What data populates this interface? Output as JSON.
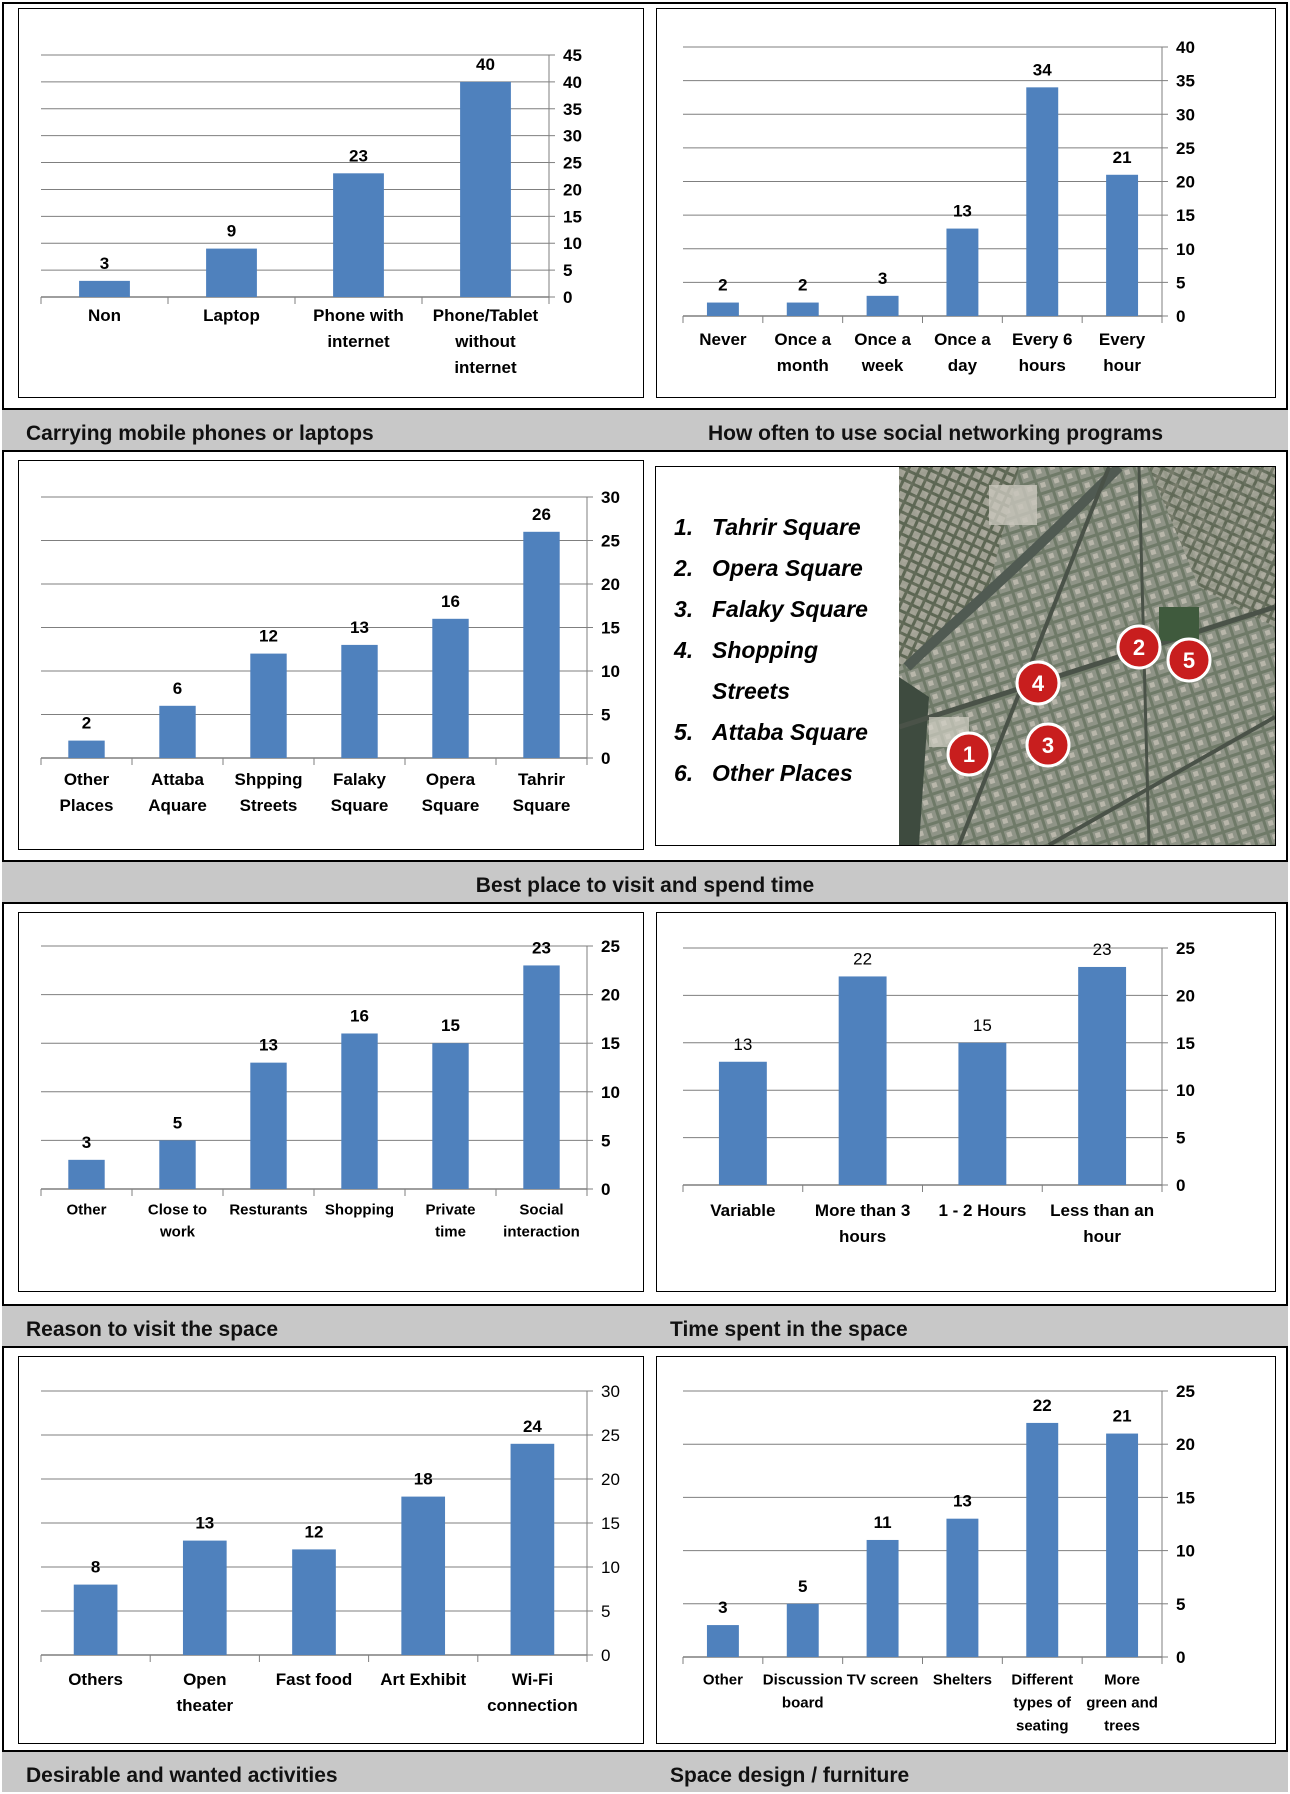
{
  "captions": {
    "c1_left": "Carrying mobile phones or laptops",
    "c1_right": "How often to use social networking programs",
    "c2_center": "Best place to visit and spend time",
    "c3_left": "Reason to visit the space",
    "c3_right": "Time spent in the space",
    "c4_left": "Desirable and wanted activities",
    "c4_right": "Space design / furniture"
  },
  "map_legend": {
    "items": [
      {
        "num": "1.",
        "label": "Tahrir Square"
      },
      {
        "num": "2.",
        "label": "Opera Square"
      },
      {
        "num": "3.",
        "label": "Falaky Square"
      },
      {
        "num": "4.",
        "label": "Shopping Streets"
      },
      {
        "num": "5.",
        "label": "Attaba Square"
      },
      {
        "num": "6.",
        "label": "Other Places"
      }
    ],
    "markers": [
      "1",
      "2",
      "3",
      "4",
      "5"
    ],
    "marker_color": "#c81e1e"
  },
  "colors": {
    "bar": "#4f81bd",
    "grid": "#7f7f7f"
  },
  "chart_data": [
    {
      "id": "carrying",
      "type": "bar",
      "title": "Carrying mobile phones or laptops",
      "categories": [
        [
          "Non"
        ],
        [
          "Laptop"
        ],
        [
          "Phone with",
          "internet"
        ],
        [
          "Phone/Tablet",
          "without",
          "internet"
        ]
      ],
      "values": [
        3,
        9,
        23,
        40
      ],
      "ylim": [
        0,
        45
      ],
      "ystep": 5,
      "ticks_bold": true,
      "labels_bold": true,
      "grid": true,
      "yaxis": "right"
    },
    {
      "id": "social",
      "type": "bar",
      "title": "How often to use social networking programs",
      "categories": [
        [
          "Never"
        ],
        [
          "Once a",
          "month"
        ],
        [
          "Once a",
          "week"
        ],
        [
          "Once a",
          "day"
        ],
        [
          "Every 6",
          "hours"
        ],
        [
          "Every",
          "hour"
        ]
      ],
      "values": [
        2,
        2,
        3,
        13,
        34,
        21
      ],
      "ylim": [
        0,
        40
      ],
      "ystep": 5,
      "ticks_bold": true,
      "labels_bold": true,
      "grid": true,
      "yaxis": "right"
    },
    {
      "id": "best_place",
      "type": "bar",
      "title": "Best place to visit and spend time",
      "categories": [
        [
          "Other",
          "Places"
        ],
        [
          "Attaba",
          "Aquare"
        ],
        [
          "Shpping",
          "Streets"
        ],
        [
          "Falaky",
          "Square"
        ],
        [
          "Opera",
          "Square"
        ],
        [
          "Tahrir",
          "Square"
        ]
      ],
      "values": [
        2,
        6,
        12,
        13,
        16,
        26
      ],
      "ylim": [
        0,
        30
      ],
      "ystep": 5,
      "ticks_bold": true,
      "labels_bold": true,
      "grid": true,
      "yaxis": "right"
    },
    {
      "id": "reason",
      "type": "bar",
      "title": "Reason to visit the space",
      "categories": [
        [
          "Other"
        ],
        [
          "Close to",
          "work"
        ],
        [
          "Resturants"
        ],
        [
          "Shopping"
        ],
        [
          "Private",
          "time"
        ],
        [
          "Social",
          "interaction"
        ]
      ],
      "values": [
        3,
        5,
        13,
        16,
        15,
        23
      ],
      "ylim": [
        0,
        25
      ],
      "ystep": 5,
      "ticks_bold": true,
      "labels_bold": true,
      "grid": true,
      "yaxis": "right"
    },
    {
      "id": "time_spent",
      "type": "bar",
      "title": "Time spent in the space",
      "categories": [
        [
          "Variable"
        ],
        [
          "More than 3",
          "hours"
        ],
        [
          "1 - 2 Hours"
        ],
        [
          "Less than an",
          "hour"
        ]
      ],
      "values": [
        13,
        22,
        15,
        23
      ],
      "ylim": [
        0,
        25
      ],
      "ystep": 5,
      "ticks_bold": true,
      "labels_bold": false,
      "grid": true,
      "yaxis": "right"
    },
    {
      "id": "activities",
      "type": "bar",
      "title": "Desirable and wanted activities",
      "categories": [
        [
          "Others"
        ],
        [
          "Open",
          "theater"
        ],
        [
          "Fast food"
        ],
        [
          "Art Exhibit"
        ],
        [
          "Wi-Fi",
          "connection"
        ]
      ],
      "values": [
        8,
        13,
        12,
        18,
        24
      ],
      "ylim": [
        0,
        30
      ],
      "ystep": 5,
      "ticks_bold": false,
      "labels_bold": true,
      "grid": true,
      "yaxis": "right"
    },
    {
      "id": "design",
      "type": "bar",
      "title": "Space design / furniture",
      "categories": [
        [
          "Other"
        ],
        [
          "Discussion",
          "board"
        ],
        [
          "TV screen"
        ],
        [
          "Shelters"
        ],
        [
          "Different",
          "types of",
          "seating"
        ],
        [
          "More",
          "green and",
          "trees"
        ]
      ],
      "values": [
        3,
        5,
        11,
        13,
        22,
        21
      ],
      "ylim": [
        0,
        25
      ],
      "ystep": 5,
      "ticks_bold": true,
      "labels_bold": true,
      "grid": true,
      "yaxis": "right"
    }
  ]
}
